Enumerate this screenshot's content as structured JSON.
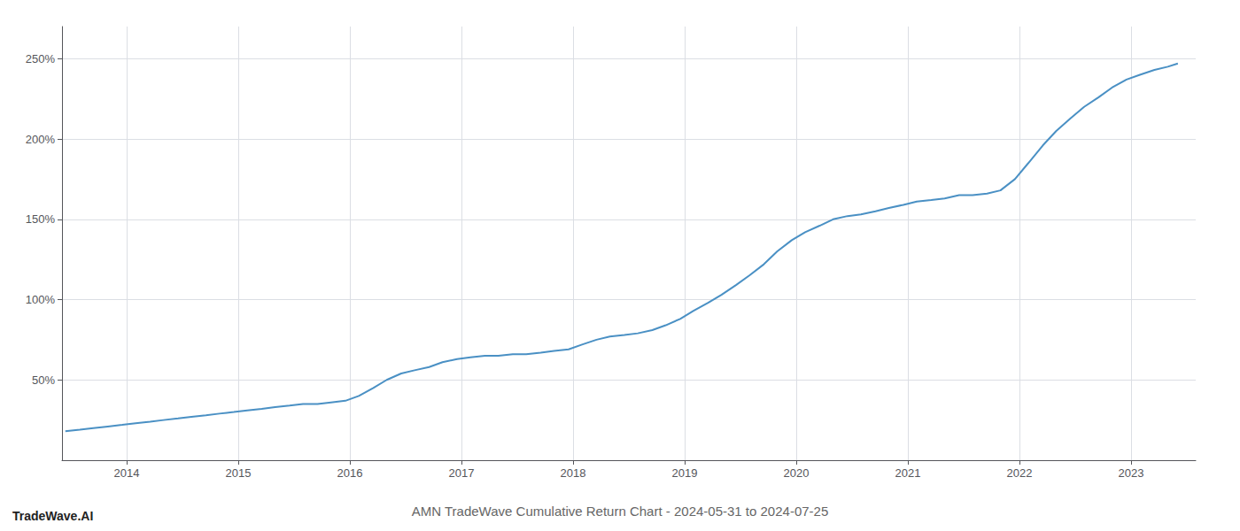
{
  "chart_data": {
    "type": "line",
    "title": "AMN TradeWave Cumulative Return Chart - 2024-05-31 to 2024-07-25",
    "annotations": [
      "TradeWave.AI"
    ],
    "color": "#4a90c4",
    "x": [
      2013.45,
      2013.58,
      2013.7,
      2013.83,
      2013.96,
      2014.08,
      2014.21,
      2014.33,
      2014.46,
      2014.58,
      2014.71,
      2014.83,
      2014.96,
      2015.08,
      2015.21,
      2015.33,
      2015.46,
      2015.58,
      2015.71,
      2015.83,
      2015.96,
      2016.08,
      2016.21,
      2016.33,
      2016.46,
      2016.58,
      2016.71,
      2016.83,
      2016.96,
      2017.08,
      2017.21,
      2017.33,
      2017.46,
      2017.58,
      2017.71,
      2017.83,
      2017.96,
      2018.08,
      2018.21,
      2018.33,
      2018.46,
      2018.58,
      2018.71,
      2018.83,
      2018.96,
      2019.08,
      2019.21,
      2019.33,
      2019.46,
      2019.58,
      2019.71,
      2019.83,
      2019.96,
      2020.08,
      2020.21,
      2020.33,
      2020.46,
      2020.58,
      2020.71,
      2020.83,
      2020.96,
      2021.08,
      2021.21,
      2021.33,
      2021.46,
      2021.58,
      2021.71,
      2021.83,
      2021.96,
      2022.08,
      2022.21,
      2022.33,
      2022.46,
      2022.58,
      2022.71,
      2022.83,
      2022.96,
      2023.08,
      2023.21,
      2023.33,
      2023.42
    ],
    "values": [
      18,
      19,
      20,
      21,
      22,
      23,
      24,
      25,
      26,
      27,
      28,
      29,
      30,
      31,
      32,
      33,
      34,
      35,
      35,
      36,
      37,
      40,
      45,
      50,
      54,
      56,
      58,
      61,
      63,
      64,
      65,
      65,
      66,
      66,
      67,
      68,
      69,
      72,
      75,
      77,
      78,
      79,
      81,
      84,
      88,
      93,
      98,
      103,
      109,
      115,
      122,
      130,
      137,
      142,
      146,
      150,
      152,
      153,
      155,
      157,
      159,
      161,
      162,
      163,
      165,
      165,
      166,
      168,
      175,
      185,
      196,
      205,
      213,
      220,
      226,
      232,
      237,
      240,
      243,
      245,
      247
    ],
    "xlim": [
      2013.42,
      2023.58
    ],
    "xticks": [
      2014,
      2015,
      2016,
      2017,
      2018,
      2019,
      2020,
      2021,
      2022,
      2023
    ],
    "ylim": [
      0,
      270
    ],
    "yticks": [
      {
        "value": 50,
        "label": "50%"
      },
      {
        "value": 100,
        "label": "100%"
      },
      {
        "value": 150,
        "label": "150%"
      },
      {
        "value": 200,
        "label": "200%"
      },
      {
        "value": 250,
        "label": "250%"
      }
    ],
    "grid": true
  }
}
